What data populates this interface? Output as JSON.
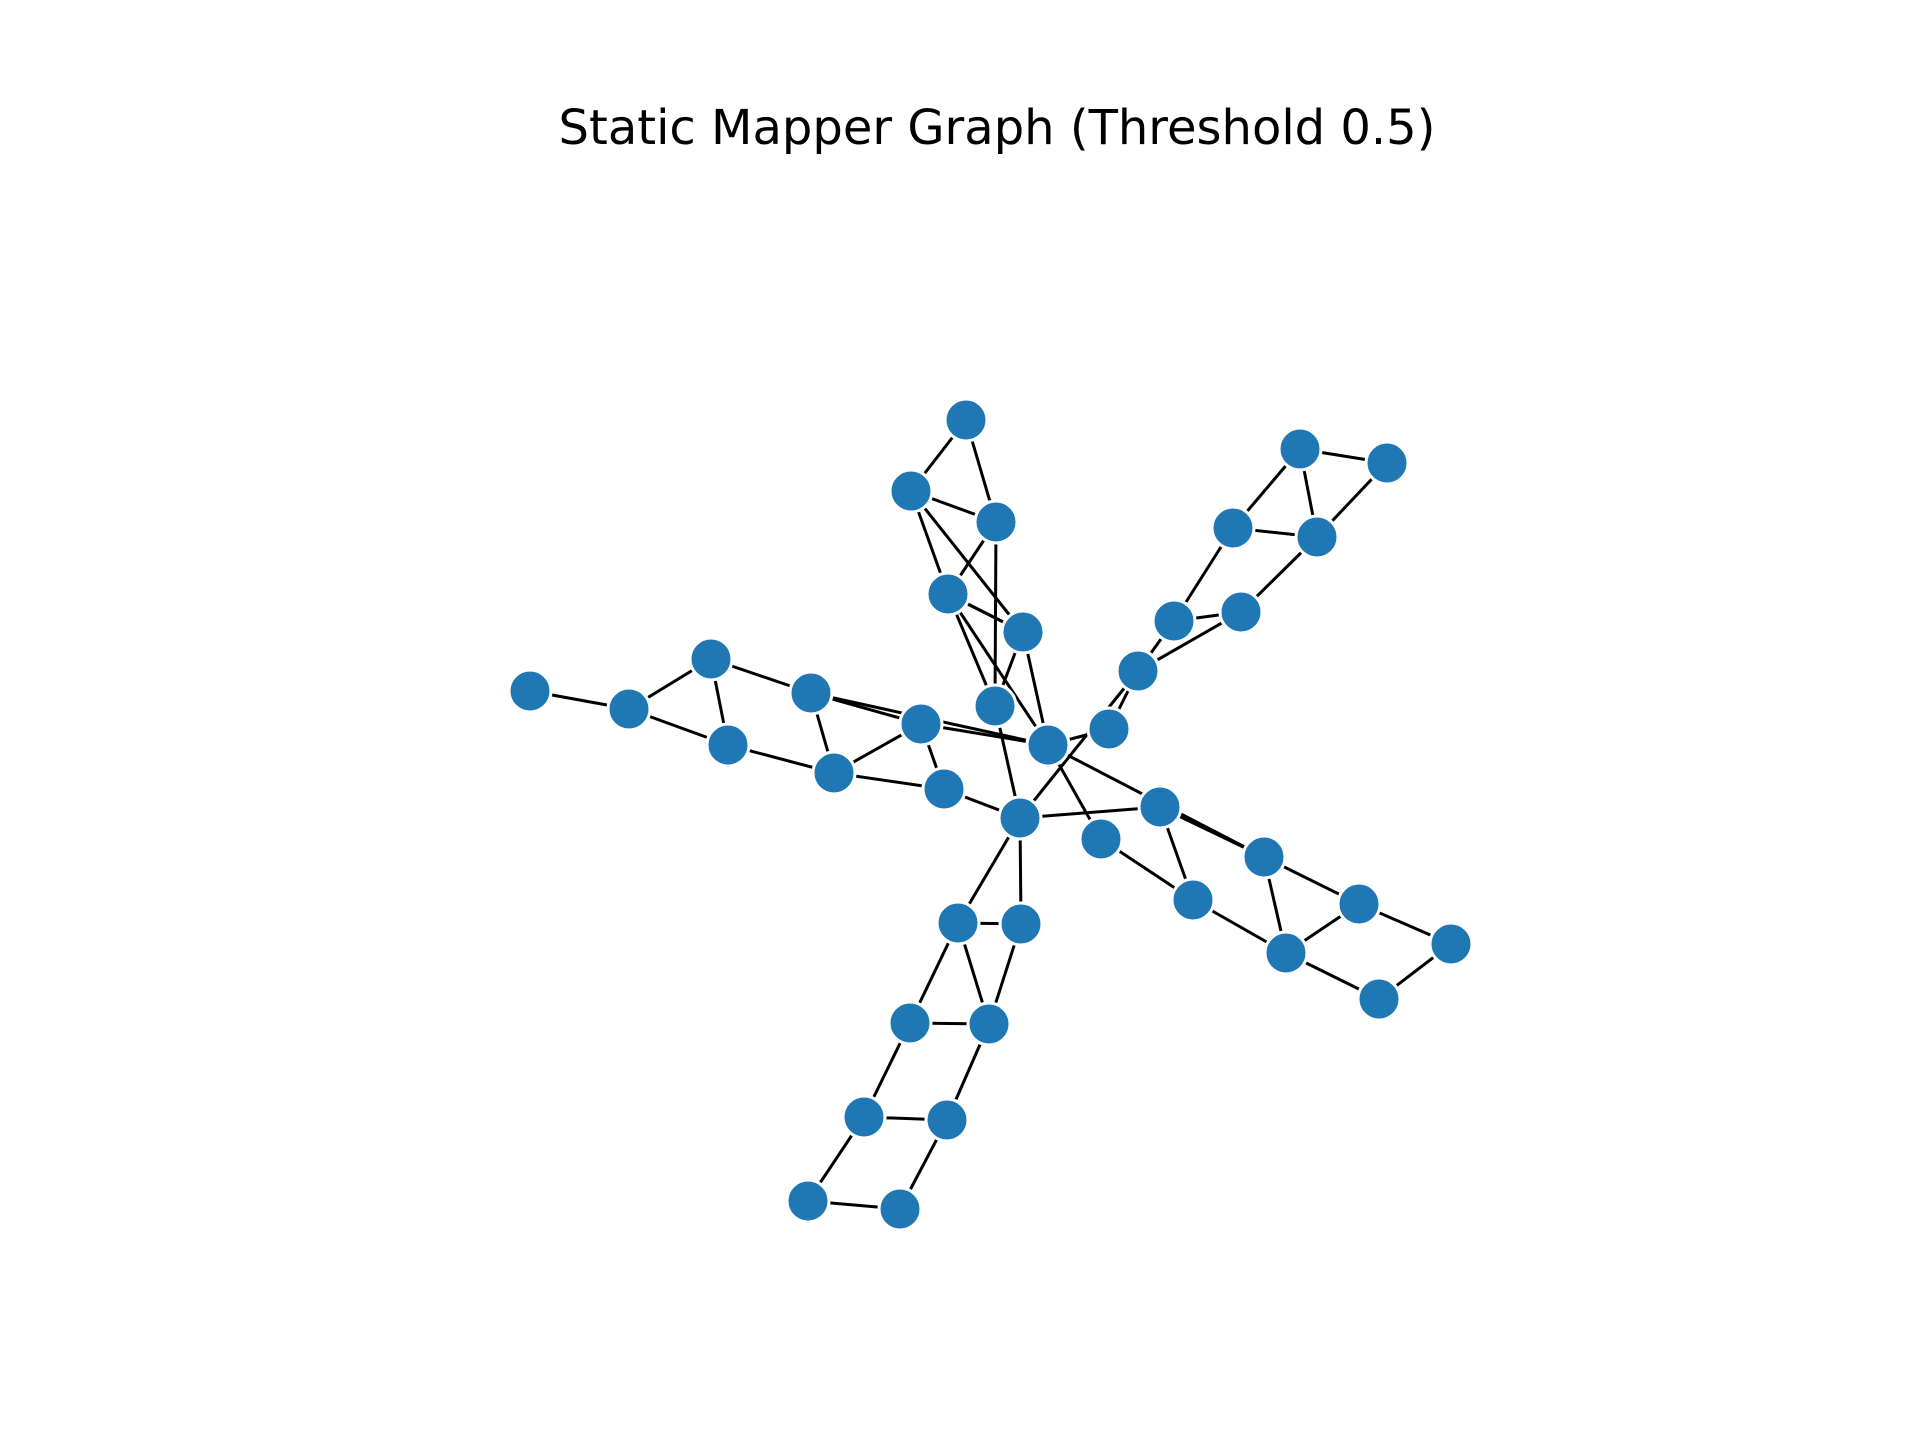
{
  "figure": {
    "title": "Static Mapper Graph (Threshold 0.5)"
  },
  "graph": {
    "node_color": "#1f77b4",
    "edge_color": "#000000",
    "background": "#ffffff",
    "nodes": [
      "n1",
      "n2",
      "n3",
      "n4",
      "n5",
      "n6",
      "n7",
      "n8",
      "n9",
      "n10",
      "n11",
      "n12",
      "n13",
      "n14",
      "n15",
      "n16",
      "n17",
      "n18",
      "n19",
      "n20",
      "n21",
      "n22",
      "n23",
      "n24",
      "n25",
      "n26",
      "n27",
      "n28",
      "n29",
      "n30",
      "n31",
      "n32",
      "n33",
      "n34",
      "n35",
      "n36",
      "n37",
      "n38",
      "n39",
      "n40",
      "n41",
      "n42"
    ],
    "edges": [
      [
        "n1",
        "n2"
      ],
      [
        "n1",
        "n3"
      ],
      [
        "n2",
        "n3"
      ],
      [
        "n2",
        "n4"
      ],
      [
        "n3",
        "n5"
      ],
      [
        "n4",
        "n5"
      ],
      [
        "n4",
        "n6"
      ],
      [
        "n5",
        "n7"
      ],
      [
        "n6",
        "n7"
      ],
      [
        "n6",
        "n9"
      ],
      [
        "n7",
        "n8"
      ],
      [
        "n8",
        "n9"
      ],
      [
        "n8",
        "n10"
      ],
      [
        "n9",
        "n11"
      ],
      [
        "n10",
        "n11"
      ],
      [
        "n11",
        "n12"
      ],
      [
        "n13",
        "n14"
      ],
      [
        "n13",
        "n15"
      ],
      [
        "n14",
        "n15"
      ],
      [
        "n14",
        "n16"
      ],
      [
        "n15",
        "n17"
      ],
      [
        "n16",
        "n17"
      ],
      [
        "n16",
        "n18"
      ],
      [
        "n17",
        "n19"
      ],
      [
        "n18",
        "n19"
      ],
      [
        "n18",
        "n21"
      ],
      [
        "n19",
        "n20"
      ],
      [
        "n20",
        "n21"
      ],
      [
        "n20",
        "n22"
      ],
      [
        "n21",
        "n22"
      ],
      [
        "n22",
        "n23"
      ],
      [
        "n24",
        "n25"
      ],
      [
        "n24",
        "n26"
      ],
      [
        "n25",
        "n26"
      ],
      [
        "n25",
        "n27"
      ],
      [
        "n26",
        "n28"
      ],
      [
        "n27",
        "n28"
      ],
      [
        "n27",
        "n29"
      ],
      [
        "n28",
        "n30"
      ],
      [
        "n29",
        "n30"
      ],
      [
        "n29",
        "n11"
      ],
      [
        "n30",
        "n12"
      ],
      [
        "n10",
        "n12"
      ],
      [
        "n31",
        "n32"
      ],
      [
        "n32",
        "n33"
      ],
      [
        "n31",
        "n34"
      ],
      [
        "n32",
        "n34"
      ],
      [
        "n33",
        "n35"
      ],
      [
        "n34",
        "n35"
      ],
      [
        "n35",
        "n36"
      ],
      [
        "n36",
        "n37"
      ],
      [
        "n37",
        "n12"
      ],
      [
        "n38",
        "n39"
      ],
      [
        "n38",
        "n40"
      ],
      [
        "n39",
        "n41"
      ],
      [
        "n40",
        "n41"
      ],
      [
        "n40",
        "n42"
      ],
      [
        "n41",
        "n42"
      ],
      [
        "n42",
        "n12"
      ],
      [
        "n39",
        "n12"
      ],
      [
        "n42",
        "n11"
      ]
    ]
  }
}
